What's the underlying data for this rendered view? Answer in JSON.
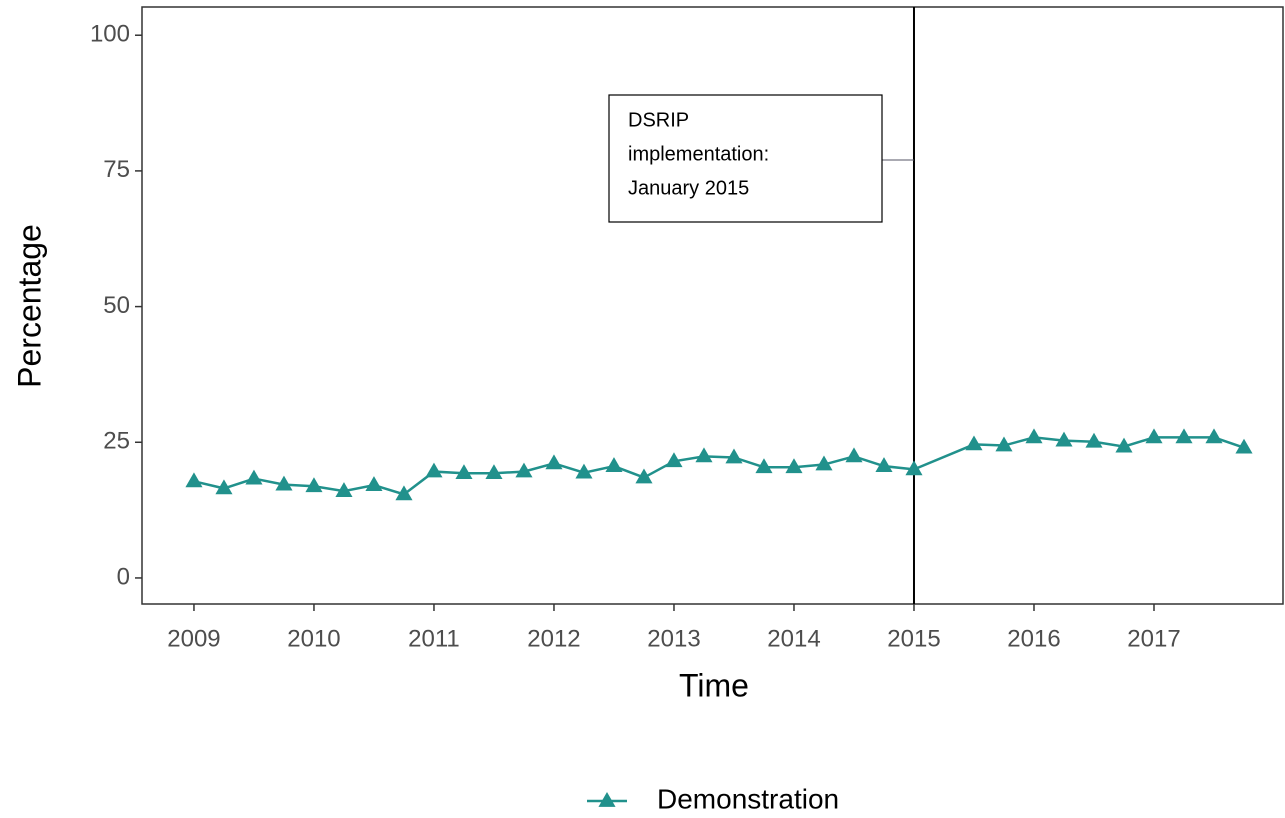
{
  "chart_data": {
    "type": "line",
    "x_label": "Time",
    "y_label": "Percentage",
    "x": [
      2009,
      2009.25,
      2009.5,
      2009.75,
      2010,
      2010.25,
      2010.5,
      2010.75,
      2011,
      2011.25,
      2011.5,
      2011.75,
      2012,
      2012.25,
      2012.5,
      2012.75,
      2013,
      2013.25,
      2013.5,
      2013.75,
      2014,
      2014.25,
      2014.5,
      2014.75,
      2015,
      2015.5,
      2015.75,
      2016,
      2016.25,
      2016.5,
      2016.75,
      2017,
      2017.25,
      2017.5,
      2017.75
    ],
    "series": [
      {
        "name": "Demonstration",
        "color": "#21918c",
        "marker": "triangle",
        "values": [
          17.8,
          16.5,
          18.3,
          17.2,
          16.9,
          16.0,
          17.1,
          15.4,
          19.6,
          19.3,
          19.3,
          19.6,
          21.1,
          19.4,
          20.6,
          18.5,
          21.5,
          22.4,
          22.2,
          20.4,
          20.4,
          20.9,
          22.4,
          20.6,
          20.0,
          24.6,
          24.4,
          25.9,
          25.3,
          25.1,
          24.2,
          25.9,
          25.9,
          25.9,
          24.0
        ]
      }
    ],
    "xlim": [
      2008.567,
      2018.075
    ],
    "xticks": [
      2009,
      2010,
      2011,
      2012,
      2013,
      2014,
      2015,
      2016,
      2017
    ],
    "ylim": [
      -4.8,
      105.2
    ],
    "yticks": [
      0,
      25,
      50,
      75,
      100
    ],
    "vline_x": 2015,
    "annotation": {
      "lines": [
        "DSRIP",
        "implementation:",
        "January 2015"
      ],
      "y": 77
    },
    "legend_position": "bottom"
  }
}
